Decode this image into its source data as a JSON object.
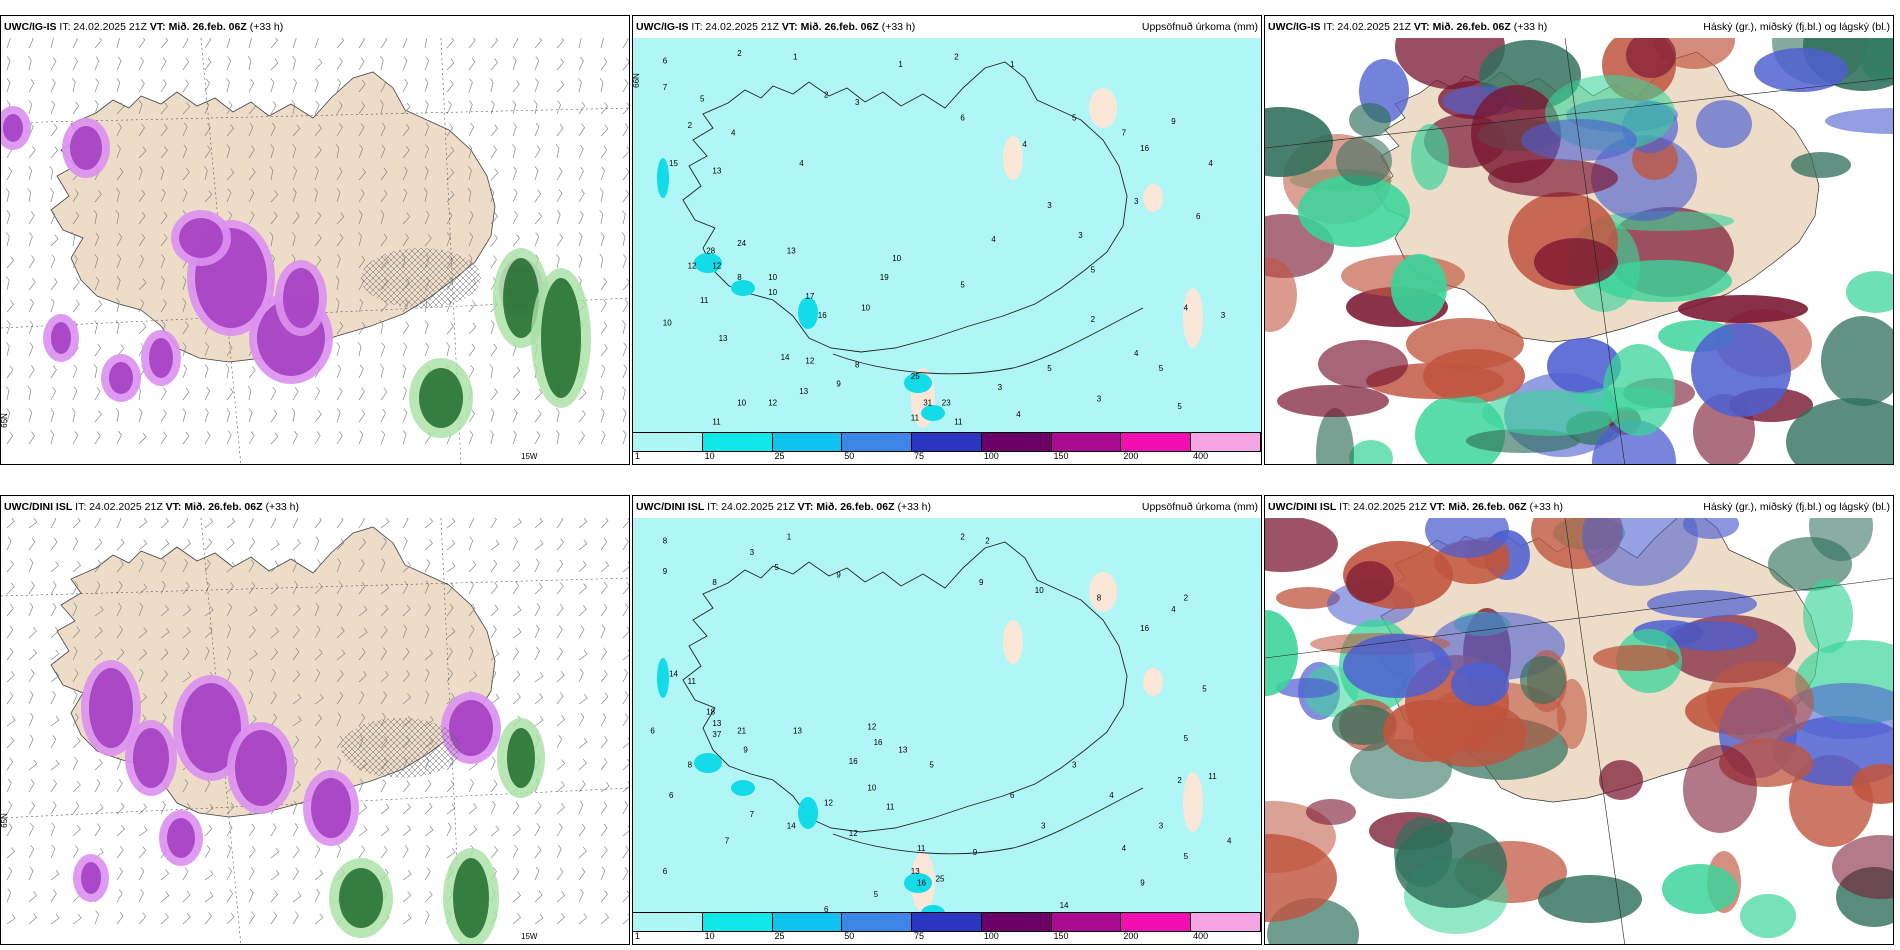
{
  "rows": [
    {
      "model": "UWC/IG-IS",
      "panels": [
        {
          "it": "IT: 24.02.2025 21Z",
          "vt_label": "VT:",
          "vt": "Mið. 26.feb. 06Z",
          "lead": "(+33 h)",
          "right_title": "",
          "lat_label": "65N",
          "lon_label": "15W"
        },
        {
          "it": "IT: 24.02.2025 21Z",
          "vt_label": "VT:",
          "vt": "Mið. 26.feb. 06Z",
          "lead": "(+33 h)",
          "right_title": "Uppsöfnuð úrkoma (mm)",
          "lat_label": "66N",
          "lon_label": ""
        },
        {
          "it": "IT: 24.02.2025 21Z",
          "vt_label": "VT:",
          "vt": "Mið. 26.feb. 06Z",
          "lead": "(+33 h)",
          "right_title": "Háský (gr.), miðský (fj.bl.) og lágský (bl.)",
          "lat_label": "",
          "lon_label": ""
        }
      ],
      "precip_values": [
        {
          "v": "6",
          "x": 4,
          "y": 3
        },
        {
          "v": "2",
          "x": 16,
          "y": 1
        },
        {
          "v": "1",
          "x": 25,
          "y": 2
        },
        {
          "v": "1",
          "x": 42,
          "y": 4
        },
        {
          "v": "2",
          "x": 51,
          "y": 2
        },
        {
          "v": "1",
          "x": 60,
          "y": 4
        },
        {
          "v": "7",
          "x": 4,
          "y": 10
        },
        {
          "v": "5",
          "x": 10,
          "y": 13
        },
        {
          "v": "2",
          "x": 8,
          "y": 20
        },
        {
          "v": "4",
          "x": 15,
          "y": 22
        },
        {
          "v": "2",
          "x": 30,
          "y": 12
        },
        {
          "v": "3",
          "x": 35,
          "y": 14
        },
        {
          "v": "15",
          "x": 5,
          "y": 30
        },
        {
          "v": "13",
          "x": 12,
          "y": 32
        },
        {
          "v": "4",
          "x": 26,
          "y": 30
        },
        {
          "v": "6",
          "x": 52,
          "y": 18
        },
        {
          "v": "4",
          "x": 62,
          "y": 25
        },
        {
          "v": "5",
          "x": 70,
          "y": 18
        },
        {
          "v": "7",
          "x": 78,
          "y": 22
        },
        {
          "v": "9",
          "x": 86,
          "y": 19
        },
        {
          "v": "3",
          "x": 80,
          "y": 40
        },
        {
          "v": "4",
          "x": 92,
          "y": 30
        },
        {
          "v": "28",
          "x": 11,
          "y": 53
        },
        {
          "v": "24",
          "x": 16,
          "y": 51
        },
        {
          "v": "12",
          "x": 8,
          "y": 57
        },
        {
          "v": "12",
          "x": 12,
          "y": 57
        },
        {
          "v": "8",
          "x": 16,
          "y": 60
        },
        {
          "v": "10",
          "x": 21,
          "y": 60
        },
        {
          "v": "13",
          "x": 24,
          "y": 53
        },
        {
          "v": "10",
          "x": 21,
          "y": 64
        },
        {
          "v": "10",
          "x": 4,
          "y": 72
        },
        {
          "v": "11",
          "x": 10,
          "y": 66
        },
        {
          "v": "17",
          "x": 27,
          "y": 65
        },
        {
          "v": "16",
          "x": 29,
          "y": 70
        },
        {
          "v": "19",
          "x": 39,
          "y": 60
        },
        {
          "v": "10",
          "x": 41,
          "y": 55
        },
        {
          "v": "13",
          "x": 13,
          "y": 76
        },
        {
          "v": "14",
          "x": 23,
          "y": 81
        },
        {
          "v": "12",
          "x": 27,
          "y": 82
        },
        {
          "v": "10",
          "x": 36,
          "y": 68
        },
        {
          "v": "8",
          "x": 35,
          "y": 83
        },
        {
          "v": "13",
          "x": 26,
          "y": 90
        },
        {
          "v": "10",
          "x": 16,
          "y": 93
        },
        {
          "v": "12",
          "x": 21,
          "y": 93
        },
        {
          "v": "11",
          "x": 12,
          "y": 98
        },
        {
          "v": "25",
          "x": 44,
          "y": 86
        },
        {
          "v": "11",
          "x": 44,
          "y": 97
        },
        {
          "v": "31",
          "x": 46,
          "y": 93
        },
        {
          "v": "23",
          "x": 49,
          "y": 93
        },
        {
          "v": "11",
          "x": 51,
          "y": 98
        },
        {
          "v": "9",
          "x": 32,
          "y": 88
        },
        {
          "v": "5",
          "x": 52,
          "y": 62
        },
        {
          "v": "4",
          "x": 57,
          "y": 50
        },
        {
          "v": "3",
          "x": 66,
          "y": 41
        },
        {
          "v": "3",
          "x": 71,
          "y": 49
        },
        {
          "v": "5",
          "x": 73,
          "y": 58
        },
        {
          "v": "16",
          "x": 81,
          "y": 26
        },
        {
          "v": "4",
          "x": 88,
          "y": 68
        },
        {
          "v": "3",
          "x": 94,
          "y": 70
        },
        {
          "v": "4",
          "x": 80,
          "y": 80
        },
        {
          "v": "5",
          "x": 84,
          "y": 84
        },
        {
          "v": "3",
          "x": 74,
          "y": 92
        },
        {
          "v": "5",
          "x": 87,
          "y": 94
        },
        {
          "v": "4",
          "x": 61,
          "y": 96
        },
        {
          "v": "3",
          "x": 58,
          "y": 89
        },
        {
          "v": "5",
          "x": 66,
          "y": 84
        },
        {
          "v": "2",
          "x": 73,
          "y": 71
        },
        {
          "v": "6",
          "x": 90,
          "y": 44
        }
      ]
    },
    {
      "model": "UWC/DINI ISL",
      "panels": [
        {
          "it": "IT: 24.02.2025 21Z",
          "vt_label": "VT:",
          "vt": "Mið. 26.feb. 06Z",
          "lead": "(+33 h)",
          "right_title": "",
          "lat_label": "65N",
          "lon_label": "15W"
        },
        {
          "it": "IT: 24.02.2025 21Z",
          "vt_label": "VT:",
          "vt": "Mið. 26.feb. 06Z",
          "lead": "(+33 h)",
          "right_title": "Uppsöfnuð úrkoma (mm)",
          "lat_label": "",
          "lon_label": ""
        },
        {
          "it": "IT: 24.02.2025 21Z",
          "vt_label": "VT:",
          "vt": "Mið. 26.feb. 06Z",
          "lead": "(+33 h)",
          "right_title": "Háský (gr.), miðský (fj.bl.) og lágský (bl.)",
          "lat_label": "",
          "lon_label": ""
        }
      ],
      "precip_values": [
        {
          "v": "8",
          "x": 4,
          "y": 3
        },
        {
          "v": "3",
          "x": 18,
          "y": 6
        },
        {
          "v": "1",
          "x": 24,
          "y": 2
        },
        {
          "v": "2",
          "x": 52,
          "y": 2
        },
        {
          "v": "2",
          "x": 56,
          "y": 3
        },
        {
          "v": "9",
          "x": 4,
          "y": 11
        },
        {
          "v": "8",
          "x": 12,
          "y": 14
        },
        {
          "v": "5",
          "x": 22,
          "y": 10
        },
        {
          "v": "9",
          "x": 32,
          "y": 12
        },
        {
          "v": "9",
          "x": 55,
          "y": 14
        },
        {
          "v": "10",
          "x": 64,
          "y": 16
        },
        {
          "v": "8",
          "x": 74,
          "y": 18
        },
        {
          "v": "4",
          "x": 86,
          "y": 21
        },
        {
          "v": "2",
          "x": 88,
          "y": 18
        },
        {
          "v": "16",
          "x": 81,
          "y": 26
        },
        {
          "v": "14",
          "x": 5,
          "y": 38
        },
        {
          "v": "11",
          "x": 8,
          "y": 40
        },
        {
          "v": "18",
          "x": 11,
          "y": 48
        },
        {
          "v": "13",
          "x": 12,
          "y": 51
        },
        {
          "v": "37",
          "x": 12,
          "y": 54
        },
        {
          "v": "21",
          "x": 16,
          "y": 53
        },
        {
          "v": "6",
          "x": 2,
          "y": 53
        },
        {
          "v": "8",
          "x": 8,
          "y": 62
        },
        {
          "v": "9",
          "x": 17,
          "y": 58
        },
        {
          "v": "13",
          "x": 25,
          "y": 53
        },
        {
          "v": "12",
          "x": 37,
          "y": 52
        },
        {
          "v": "16",
          "x": 38,
          "y": 56
        },
        {
          "v": "16",
          "x": 34,
          "y": 61
        },
        {
          "v": "13",
          "x": 42,
          "y": 58
        },
        {
          "v": "5",
          "x": 47,
          "y": 62
        },
        {
          "v": "12",
          "x": 30,
          "y": 72
        },
        {
          "v": "10",
          "x": 37,
          "y": 68
        },
        {
          "v": "11",
          "x": 40,
          "y": 73
        },
        {
          "v": "14",
          "x": 24,
          "y": 78
        },
        {
          "v": "12",
          "x": 34,
          "y": 80
        },
        {
          "v": "7",
          "x": 18,
          "y": 75
        },
        {
          "v": "6",
          "x": 5,
          "y": 70
        },
        {
          "v": "7",
          "x": 14,
          "y": 82
        },
        {
          "v": "6",
          "x": 4,
          "y": 90
        },
        {
          "v": "11",
          "x": 45,
          "y": 84
        },
        {
          "v": "13",
          "x": 44,
          "y": 90
        },
        {
          "v": "16",
          "x": 45,
          "y": 93
        },
        {
          "v": "25",
          "x": 48,
          "y": 92
        },
        {
          "v": "5",
          "x": 38,
          "y": 96
        },
        {
          "v": "6",
          "x": 30,
          "y": 100
        },
        {
          "v": "9",
          "x": 54,
          "y": 85
        },
        {
          "v": "6",
          "x": 60,
          "y": 70
        },
        {
          "v": "3",
          "x": 65,
          "y": 78
        },
        {
          "v": "3",
          "x": 70,
          "y": 62
        },
        {
          "v": "4",
          "x": 76,
          "y": 70
        },
        {
          "v": "2",
          "x": 87,
          "y": 66
        },
        {
          "v": "4",
          "x": 78,
          "y": 84
        },
        {
          "v": "3",
          "x": 84,
          "y": 78
        },
        {
          "v": "5",
          "x": 88,
          "y": 86
        },
        {
          "v": "9",
          "x": 81,
          "y": 93
        },
        {
          "v": "14",
          "x": 68,
          "y": 99
        },
        {
          "v": "4",
          "x": 95,
          "y": 82
        },
        {
          "v": "11",
          "x": 92,
          "y": 65
        },
        {
          "v": "5",
          "x": 88,
          "y": 55
        },
        {
          "v": "5",
          "x": 91,
          "y": 42
        }
      ]
    }
  ],
  "legend": {
    "ticks": [
      "1",
      "10",
      "25",
      "50",
      "75",
      "100",
      "150",
      "200",
      "400"
    ],
    "colors": [
      "#aef6f5",
      "#11e7ea",
      "#0fc3ef",
      "#3e86e6",
      "#2b37c2",
      "#6b0066",
      "#aa0b92",
      "#f10fb3",
      "#f5a5e4"
    ]
  },
  "colors": {
    "land": "#ecdcc8",
    "ocean_precip": "#b1f6f6",
    "cyan_strong": "#13dbe7",
    "purple": "#a743c4",
    "purple_light": "#dc90f0",
    "green_dark": "#1e6b2a",
    "green_light": "#a6e0a2",
    "cloud_high": "#2f6f5b",
    "cloud_mid": "#7a1732",
    "cloud_mid_light": "#c0543e",
    "cloud_low": "#4d5fd0",
    "cloud_teal": "#3ad49a"
  }
}
